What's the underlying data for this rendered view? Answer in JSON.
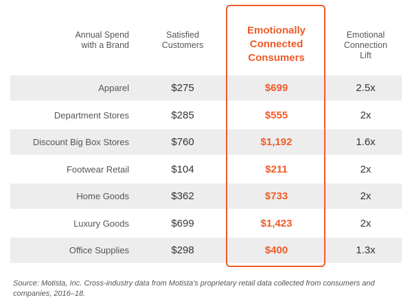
{
  "chart_data": {
    "type": "table",
    "columns": [
      "Annual Spend\nwith a Brand",
      "Satisfied\nCustomers",
      "Emotionally\nConnected\nConsumers",
      "Emotional\nConnection\nLift"
    ],
    "rows": [
      {
        "category": "Apparel",
        "satisfied": "$275",
        "emotional": "$699",
        "lift": "2.5x"
      },
      {
        "category": "Department Stores",
        "satisfied": "$285",
        "emotional": "$555",
        "lift": "2x"
      },
      {
        "category": "Discount Big Box Stores",
        "satisfied": "$760",
        "emotional": "$1,192",
        "lift": "1.6x"
      },
      {
        "category": "Footwear Retail",
        "satisfied": "$104",
        "emotional": "$211",
        "lift": "2x"
      },
      {
        "category": "Home Goods",
        "satisfied": "$362",
        "emotional": "$733",
        "lift": "2x"
      },
      {
        "category": "Luxury Goods",
        "satisfied": "$699",
        "emotional": "$1,423",
        "lift": "2x"
      },
      {
        "category": "Office Supplies",
        "satisfied": "$298",
        "emotional": "$400",
        "lift": "1.3x"
      }
    ],
    "source": "Source: Motista, Inc. Cross-industry data from Motista's proprietary retail data collected from consumers and companies, 2016–18."
  },
  "colors": {
    "accent": "#f05a28",
    "row_shade": "#ededed",
    "text": "#4a4a4a"
  }
}
